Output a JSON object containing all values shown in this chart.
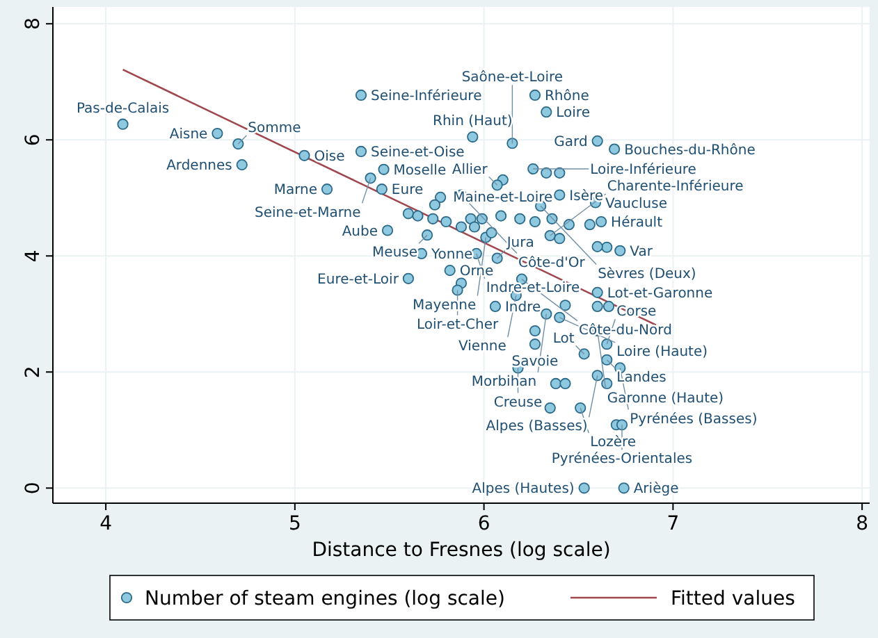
{
  "chart_data": {
    "type": "scatter",
    "xlabel": "Distance to Fresnes (log scale)",
    "xlim": [
      3.72,
      8.04
    ],
    "ylim": [
      -0.26,
      8.29
    ],
    "xticks": [
      4,
      5,
      6,
      7,
      8
    ],
    "yticks": [
      0,
      2,
      4,
      6,
      8
    ],
    "grid": true,
    "legend": "bottom",
    "marker": "circle",
    "series": [
      {
        "name": "Number of steam engines (log scale)",
        "color": "#8ec9e0",
        "x": [
          4.09,
          4.59,
          4.7,
          5.05,
          4.72,
          5.35,
          5.35,
          5.47,
          5.4,
          5.17,
          5.46,
          6.27,
          6.33,
          5.94,
          6.15,
          6.6,
          6.69,
          6.26,
          6.33,
          6.4,
          6.1,
          6.07,
          5.77,
          5.88,
          6.4,
          6.59,
          6.3,
          5.74,
          6.62,
          6.35,
          6.72,
          6.01,
          5.7,
          5.49,
          5.6,
          5.88,
          5.67,
          5.96,
          6.07,
          6.36,
          6.65,
          5.82,
          5.6,
          5.88,
          5.86,
          6.17,
          6.2,
          6.6,
          6.06,
          6.43,
          6.6,
          6.66,
          6.33,
          6.4,
          6.27,
          6.6,
          6.27,
          6.65,
          6.53,
          6.65,
          6.18,
          6.72,
          6.6,
          6.38,
          6.43,
          6.65,
          6.35,
          6.51,
          6.7,
          6.73,
          6.53,
          6.74,
          5.65,
          5.73,
          5.8,
          5.93,
          5.99,
          6.09,
          6.19,
          6.27,
          6.45,
          6.56,
          6.04,
          5.95,
          6.4,
          6.6
        ],
        "values": [
          6.27,
          6.11,
          5.93,
          5.73,
          5.57,
          6.77,
          5.8,
          5.49,
          5.34,
          5.15,
          5.15,
          6.77,
          6.48,
          6.05,
          5.94,
          5.98,
          5.84,
          5.5,
          5.43,
          5.43,
          5.31,
          5.22,
          5.01,
          5.05,
          5.05,
          4.92,
          4.86,
          4.88,
          4.59,
          4.35,
          4.09,
          4.32,
          4.36,
          4.44,
          4.73,
          4.5,
          4.04,
          4.04,
          3.96,
          4.64,
          4.15,
          3.75,
          3.61,
          3.53,
          3.41,
          3.32,
          3.6,
          3.37,
          3.13,
          3.15,
          3.13,
          3.13,
          3.0,
          2.94,
          2.71,
          2.71,
          2.48,
          2.48,
          2.31,
          2.21,
          2.07,
          2.07,
          1.94,
          1.8,
          1.8,
          1.8,
          1.38,
          1.38,
          1.09,
          1.09,
          0.0,
          0.0,
          4.69,
          4.64,
          4.59,
          4.64,
          4.64,
          4.69,
          4.64,
          4.59,
          4.54,
          4.54,
          4.4,
          4.5,
          4.3,
          4.16
        ]
      },
      {
        "name": "Fitted values",
        "color": "#a0464e",
        "type": "line",
        "marker": "none",
        "x": [
          4.09,
          6.91
        ],
        "values": [
          7.21,
          2.81
        ]
      }
    ],
    "annotations": [
      {
        "text": "Pas-de-Calais",
        "x": 4.09,
        "y": 6.27
      },
      {
        "text": "Aisne",
        "x": 4.59,
        "y": 6.11
      },
      {
        "text": "Somme",
        "x": 4.7,
        "y": 5.93
      },
      {
        "text": "Oise",
        "x": 5.05,
        "y": 5.73
      },
      {
        "text": "Ardennes",
        "x": 4.72,
        "y": 5.57
      },
      {
        "text": "Seine-Inférieure",
        "x": 5.35,
        "y": 6.77
      },
      {
        "text": "Seine-et-Oise",
        "x": 5.35,
        "y": 5.8
      },
      {
        "text": "Moselle",
        "x": 5.47,
        "y": 5.49
      },
      {
        "text": "Seine-et-Marne",
        "x": 5.4,
        "y": 5.34
      },
      {
        "text": "Marne",
        "x": 5.17,
        "y": 5.15
      },
      {
        "text": "Eure",
        "x": 5.46,
        "y": 5.15
      },
      {
        "text": "Rhône",
        "x": 6.27,
        "y": 6.77
      },
      {
        "text": "Loire",
        "x": 6.33,
        "y": 6.48
      },
      {
        "text": "Rhin (Haut)",
        "x": 5.94,
        "y": 6.05
      },
      {
        "text": "Saône-et-Loire",
        "x": 6.15,
        "y": 5.94
      },
      {
        "text": "Gard",
        "x": 6.6,
        "y": 5.98
      },
      {
        "text": "Bouches-du-Rhône",
        "x": 6.69,
        "y": 5.84
      },
      {
        "text": "Loire-Inférieure",
        "x": 6.26,
        "y": 5.5
      },
      {
        "text": "Maine-et-Loire",
        "x": 6.1,
        "y": 5.31
      },
      {
        "text": "Allier",
        "x": 6.07,
        "y": 5.22
      },
      {
        "text": "Côte-d'Or",
        "x": 5.88,
        "y": 5.05
      },
      {
        "text": "Isère",
        "x": 6.4,
        "y": 5.05
      },
      {
        "text": "Vaucluse",
        "x": 6.59,
        "y": 4.92
      },
      {
        "text": "Sèvres (Deux)",
        "x": 6.3,
        "y": 4.86
      },
      {
        "text": "Hérault",
        "x": 6.62,
        "y": 4.59
      },
      {
        "text": "Charente-Inférieure",
        "x": 6.35,
        "y": 4.35
      },
      {
        "text": "Var",
        "x": 6.72,
        "y": 4.09
      },
      {
        "text": "Mayenne",
        "x": 6.01,
        "y": 4.32
      },
      {
        "text": "Meuse",
        "x": 5.7,
        "y": 4.36
      },
      {
        "text": "Aube",
        "x": 5.49,
        "y": 4.44
      },
      {
        "text": "Yonne",
        "x": 5.67,
        "y": 4.04
      },
      {
        "text": "Indre-et-Loire",
        "x": 5.96,
        "y": 4.04
      },
      {
        "text": "Jura",
        "x": 6.07,
        "y": 3.96
      },
      {
        "text": "Orne",
        "x": 5.82,
        "y": 3.75
      },
      {
        "text": "Eure-et-Loir",
        "x": 5.6,
        "y": 3.61
      },
      {
        "text": "Loir-et-Cher",
        "x": 5.86,
        "y": 3.41
      },
      {
        "text": "Vienne",
        "x": 6.17,
        "y": 3.32
      },
      {
        "text": "Côte-du-Nord",
        "x": 6.2,
        "y": 3.6
      },
      {
        "text": "Lot-et-Garonne",
        "x": 6.6,
        "y": 3.37
      },
      {
        "text": "Indre",
        "x": 6.06,
        "y": 3.13
      },
      {
        "text": "Morbihan",
        "x": 6.33,
        "y": 3.0
      },
      {
        "text": "Loire (Haute)",
        "x": 6.4,
        "y": 2.94
      },
      {
        "text": "Garonne (Haute)",
        "x": 6.6,
        "y": 2.71
      },
      {
        "text": "Savoie",
        "x": 6.27,
        "y": 2.48
      },
      {
        "text": "Corse",
        "x": 6.65,
        "y": 2.48
      },
      {
        "text": "Lot",
        "x": 6.53,
        "y": 2.31
      },
      {
        "text": "Landes",
        "x": 6.65,
        "y": 2.21
      },
      {
        "text": "Creuse",
        "x": 6.18,
        "y": 2.07
      },
      {
        "text": "Pyrénées (Basses)",
        "x": 6.72,
        "y": 2.07
      },
      {
        "text": "Alpes (Basses)",
        "x": 6.6,
        "y": 1.94
      },
      {
        "text": "Lozère",
        "x": 6.51,
        "y": 1.38
      },
      {
        "text": "Pyrénées-Orientales",
        "x": 6.73,
        "y": 1.09
      },
      {
        "text": "Alpes (Hautes)",
        "x": 6.53,
        "y": 0.0
      },
      {
        "text": "Ariège",
        "x": 6.74,
        "y": 0.0
      }
    ]
  }
}
